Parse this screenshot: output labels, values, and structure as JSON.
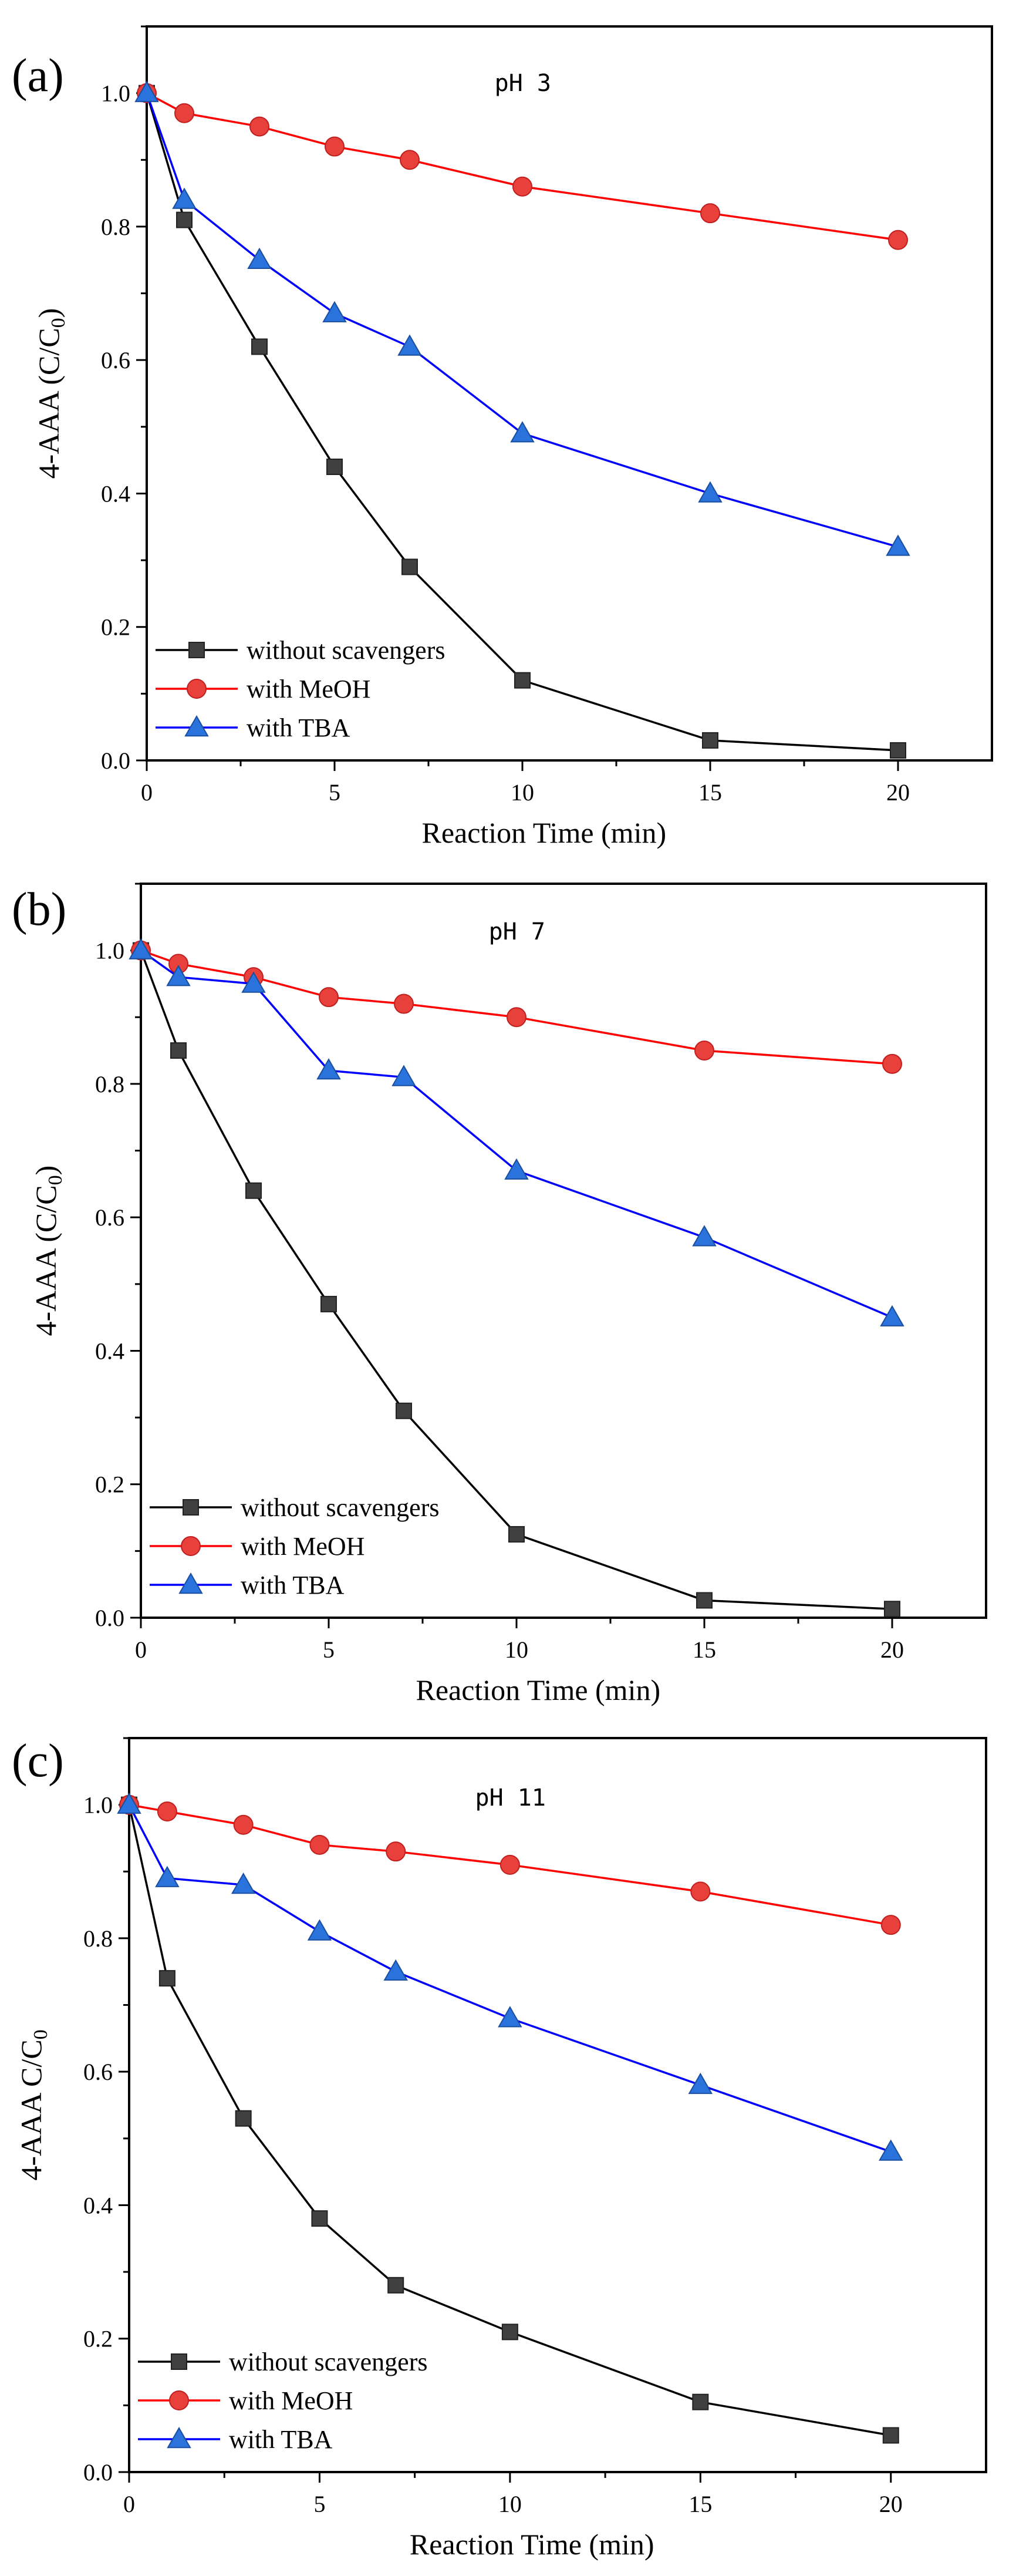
{
  "chart_data": [
    {
      "type": "line",
      "panel_label": "(a)",
      "annotation": "pH 3",
      "xlabel": "Reaction Time (min)",
      "ylabel": "4-AAA (C/C0)",
      "xlim": [
        0,
        22.5
      ],
      "ylim": [
        0,
        1.1
      ],
      "xticks": [
        0,
        5,
        10,
        15,
        20
      ],
      "yticks": [
        0.0,
        0.2,
        0.4,
        0.6,
        0.8,
        1.0
      ],
      "legend_position": "bottom-left",
      "x": [
        0,
        1,
        3,
        5,
        7,
        10,
        15,
        20
      ],
      "series": [
        {
          "name": "without scavengers",
          "color": "#000000",
          "marker": "square",
          "marker_color": "#404040",
          "values": [
            1.0,
            0.81,
            0.62,
            0.44,
            0.29,
            0.12,
            0.03,
            0.015
          ]
        },
        {
          "name": "with MeOH",
          "color": "#ff0000",
          "marker": "circle",
          "marker_color": "#e8403a",
          "values": [
            1.0,
            0.97,
            0.95,
            0.92,
            0.9,
            0.86,
            0.82,
            0.78
          ]
        },
        {
          "name": "with TBA",
          "color": "#0000ff",
          "marker": "triangle",
          "marker_color": "#2a72dc",
          "values": [
            1.0,
            0.84,
            0.75,
            0.67,
            0.62,
            0.49,
            0.4,
            0.32
          ]
        }
      ]
    },
    {
      "type": "line",
      "panel_label": "(b)",
      "annotation": "pH 7",
      "xlabel": "Reaction Time (min)",
      "ylabel": "4-AAA (C/C0)",
      "xlim": [
        0,
        22.5
      ],
      "ylim": [
        0,
        1.1
      ],
      "xticks": [
        0,
        5,
        10,
        15,
        20
      ],
      "yticks": [
        0.0,
        0.2,
        0.4,
        0.6,
        0.8,
        1.0
      ],
      "legend_position": "bottom-left",
      "x": [
        0,
        1,
        3,
        5,
        7,
        10,
        15,
        20
      ],
      "series": [
        {
          "name": "without scavengers",
          "color": "#000000",
          "marker": "square",
          "marker_color": "#404040",
          "values": [
            1.0,
            0.85,
            0.64,
            0.47,
            0.31,
            0.125,
            0.026,
            0.013
          ]
        },
        {
          "name": "with MeOH",
          "color": "#ff0000",
          "marker": "circle",
          "marker_color": "#e8403a",
          "values": [
            1.0,
            0.98,
            0.96,
            0.93,
            0.92,
            0.9,
            0.85,
            0.83
          ]
        },
        {
          "name": "with TBA",
          "color": "#0000ff",
          "marker": "triangle",
          "marker_color": "#2a72dc",
          "values": [
            1.0,
            0.96,
            0.95,
            0.82,
            0.81,
            0.67,
            0.57,
            0.45
          ]
        }
      ]
    },
    {
      "type": "line",
      "panel_label": "(c)",
      "annotation": "pH 11",
      "xlabel": "Reaction Time (min)",
      "ylabel": "4-AAA C/C0",
      "xlim": [
        0,
        22.5
      ],
      "ylim": [
        0,
        1.1
      ],
      "xticks": [
        0,
        5,
        10,
        15,
        20
      ],
      "yticks": [
        0.0,
        0.2,
        0.4,
        0.6,
        0.8,
        1.0
      ],
      "legend_position": "bottom-left",
      "x": [
        0,
        1,
        3,
        5,
        7,
        10,
        15,
        20
      ],
      "series": [
        {
          "name": "without scavengers",
          "color": "#000000",
          "marker": "square",
          "marker_color": "#404040",
          "values": [
            1.0,
            0.74,
            0.53,
            0.38,
            0.28,
            0.21,
            0.105,
            0.055
          ]
        },
        {
          "name": "with MeOH",
          "color": "#ff0000",
          "marker": "circle",
          "marker_color": "#e8403a",
          "values": [
            1.0,
            0.99,
            0.97,
            0.94,
            0.93,
            0.91,
            0.87,
            0.82
          ]
        },
        {
          "name": "with TBA",
          "color": "#0000ff",
          "marker": "triangle",
          "marker_color": "#2a72dc",
          "values": [
            1.0,
            0.89,
            0.88,
            0.81,
            0.75,
            0.68,
            0.58,
            0.48
          ]
        }
      ]
    }
  ]
}
